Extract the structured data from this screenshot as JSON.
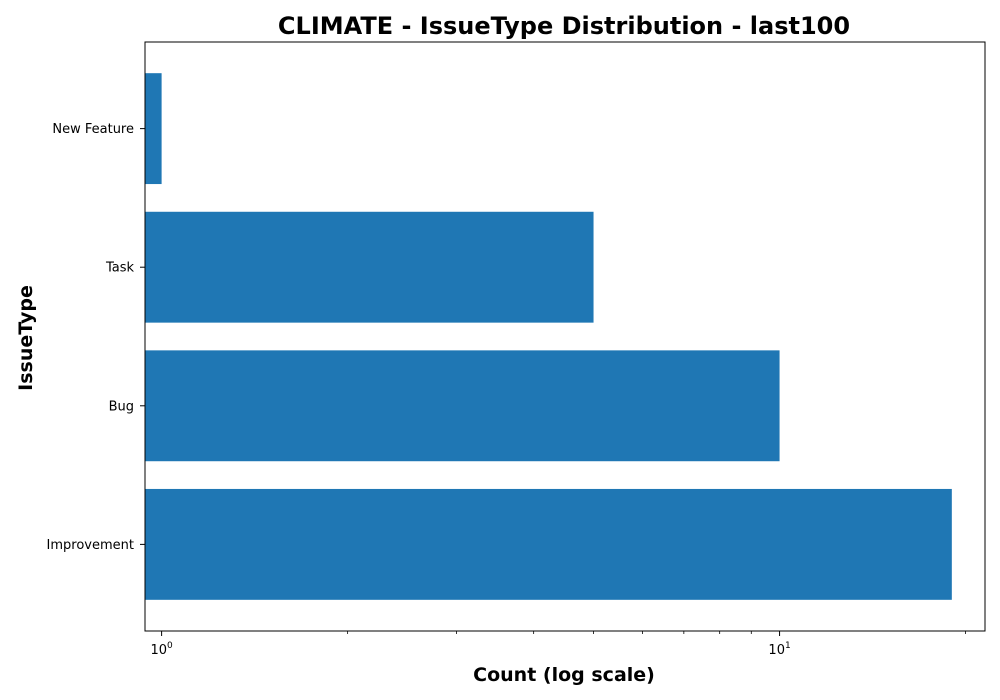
{
  "chart_data": {
    "type": "bar",
    "orientation": "horizontal",
    "title": "CLIMATE - IssueType Distribution - last100",
    "xlabel": "Count (log scale)",
    "ylabel": "IssueType",
    "x_scale": "log",
    "xlim": [
      0.94,
      21.5
    ],
    "x_ticks": [
      {
        "value": 1,
        "base": "10",
        "exp": "0"
      },
      {
        "value": 10,
        "base": "10",
        "exp": "1"
      }
    ],
    "categories": [
      "Improvement",
      "Bug",
      "Task",
      "New Feature"
    ],
    "values": [
      19,
      10,
      5,
      1
    ],
    "bar_color": "#1f77b4",
    "grid": false,
    "legend": "none"
  }
}
